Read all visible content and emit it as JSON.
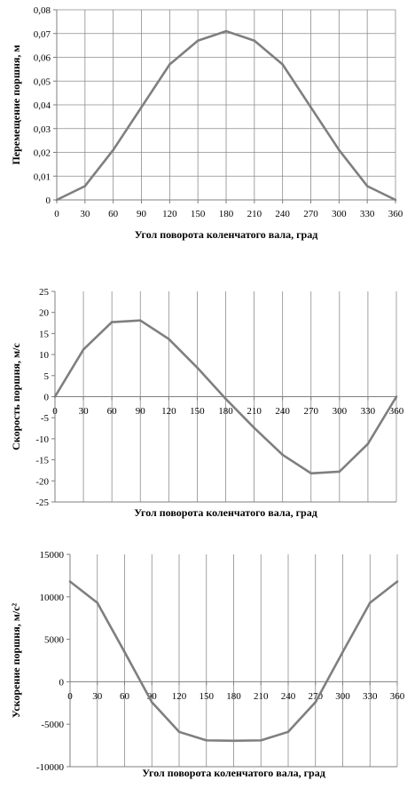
{
  "chart_data": [
    {
      "type": "line",
      "xlabel": "Угол поворота коленчатого вала, град",
      "ylabel": "Перемещение поршня, м",
      "x": [
        0,
        30,
        60,
        90,
        120,
        150,
        180,
        210,
        240,
        270,
        300,
        330,
        360
      ],
      "x_tick_labels": [
        "0",
        "30",
        "60",
        "90",
        "120",
        "150",
        "180",
        "210",
        "240",
        "270",
        "300",
        "330",
        "360"
      ],
      "y_tick_labels": [
        "0",
        "0,01",
        "0,02",
        "0,03",
        "0,04",
        "0,05",
        "0,06",
        "0,07",
        "0,08"
      ],
      "ylim": [
        0,
        0.08
      ],
      "grid": "vertical and horizontal",
      "series": [
        {
          "values": [
            0,
            0.0058,
            0.021,
            0.039,
            0.057,
            0.067,
            0.071,
            0.067,
            0.057,
            0.039,
            0.021,
            0.0058,
            0
          ]
        }
      ],
      "color": "#7f7f7f"
    },
    {
      "type": "line",
      "xlabel": "Угол поворота коленчатого вала, град",
      "ylabel": "Скорость поршня, м/с",
      "x": [
        0,
        30,
        60,
        90,
        120,
        150,
        180,
        210,
        240,
        270,
        300,
        330,
        360
      ],
      "x_tick_labels": [
        "0",
        "30",
        "60",
        "90",
        "120",
        "150",
        "180",
        "210",
        "240",
        "270",
        "300",
        "330",
        "360"
      ],
      "y_tick_labels": [
        "-25",
        "-20",
        "-15",
        "-10",
        "-5",
        "0",
        "5",
        "10",
        "15",
        "20",
        "25"
      ],
      "ylim": [
        -25,
        25
      ],
      "grid": "vertical",
      "series": [
        {
          "values": [
            0,
            11.2,
            17.7,
            18.1,
            13.7,
            6.9,
            -0.5,
            -7.4,
            -13.8,
            -18.2,
            -17.8,
            -11.2,
            0
          ]
        }
      ],
      "color": "#7f7f7f"
    },
    {
      "type": "line",
      "xlabel": "Угол поворота коленчатого вала, град",
      "ylabel": "Ускорение поршня, м/с²",
      "x": [
        0,
        30,
        60,
        90,
        120,
        150,
        180,
        210,
        240,
        270,
        300,
        330,
        360
      ],
      "x_tick_labels": [
        "0",
        "30",
        "60",
        "90",
        "120",
        "150",
        "180",
        "210",
        "240",
        "270",
        "300",
        "330",
        "360"
      ],
      "y_tick_labels": [
        "-10000",
        "-5000",
        "0",
        "5000",
        "10000",
        "15000"
      ],
      "ylim": [
        -10000,
        15000
      ],
      "grid": "vertical",
      "series": [
        {
          "values": [
            11800,
            9300,
            3500,
            -2400,
            -5900,
            -6900,
            -6950,
            -6900,
            -5900,
            -2400,
            3500,
            9300,
            11800
          ]
        }
      ],
      "color": "#7f7f7f"
    }
  ]
}
